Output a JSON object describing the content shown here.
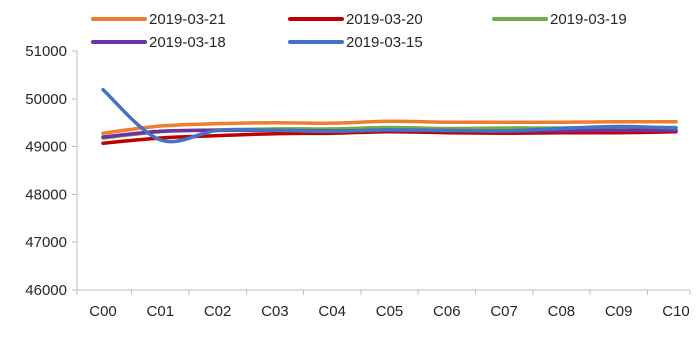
{
  "chart_data": {
    "type": "line",
    "title": "",
    "xlabel": "",
    "ylabel": "",
    "categories": [
      "C00",
      "C01",
      "C02",
      "C03",
      "C04",
      "C05",
      "C06",
      "C07",
      "C08",
      "C09",
      "C10"
    ],
    "ylim": [
      46000,
      51000
    ],
    "yticks": [
      46000,
      47000,
      48000,
      49000,
      50000,
      51000
    ],
    "ytick_labels": [
      "46000",
      "47000",
      "48000",
      "49000",
      "50000",
      "51000"
    ],
    "grid": false,
    "legend_position": "top",
    "smooth": true,
    "series": [
      {
        "name": "2019-03-21",
        "color": "#ED7D31",
        "values": [
          49280,
          49430,
          49480,
          49500,
          49490,
          49530,
          49510,
          49510,
          49510,
          49520,
          49520
        ]
      },
      {
        "name": "2019-03-20",
        "color": "#C00000",
        "values": [
          49070,
          49180,
          49230,
          49270,
          49280,
          49310,
          49290,
          49280,
          49290,
          49290,
          49310
        ]
      },
      {
        "name": "2019-03-19",
        "color": "#70AD47",
        "values": [
          49180,
          49310,
          49350,
          49370,
          49370,
          49400,
          49380,
          49390,
          49390,
          49400,
          49400
        ]
      },
      {
        "name": "2019-03-18",
        "color": "#7030A0",
        "values": [
          49200,
          49320,
          49340,
          49340,
          49330,
          49340,
          49330,
          49320,
          49330,
          49340,
          49340
        ]
      },
      {
        "name": "2019-03-15",
        "color": "#4472C4",
        "values": [
          50190,
          49140,
          49340,
          49340,
          49320,
          49350,
          49340,
          49330,
          49380,
          49420,
          49390
        ]
      }
    ]
  }
}
